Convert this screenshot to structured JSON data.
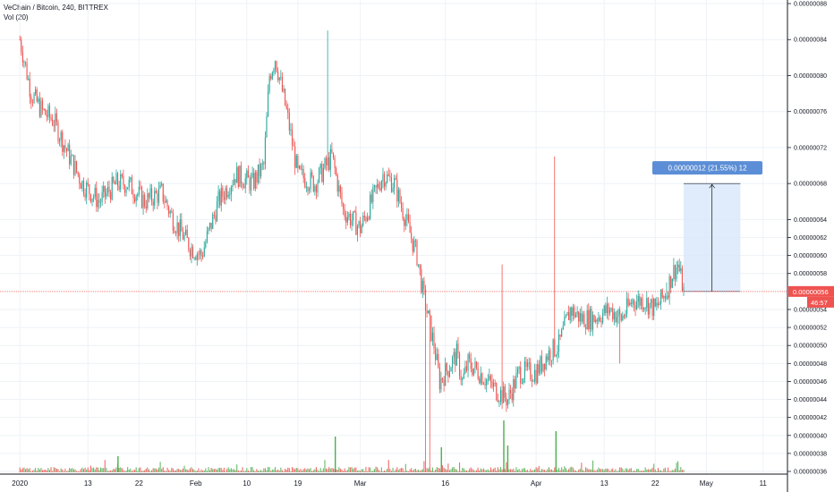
{
  "header": {
    "symbol_line": "VeChain / Bitcoin, 240, BITTREX",
    "indicator_line": "Vol (20)"
  },
  "colors": {
    "up": "#26a69a",
    "down": "#ef5350",
    "vol_up": "#4caf50",
    "vol_down": "#ef5350",
    "grid": "#eef2f6",
    "price_line": "#ef5350",
    "measure_fill": "#dbe9fb",
    "measure_badge": "#5b8ed6",
    "axis_border": "#131722"
  },
  "chart_data": {
    "type": "candlestick",
    "grid": true,
    "y_axis": {
      "range": [
        3.5e-07,
        8.8e-07
      ],
      "ticks": [
        "0.00000088",
        "0.00000084",
        "0.00000080",
        "0.00000076",
        "0.00000072",
        "0.00000068",
        "0.00000064",
        "0.00000062",
        "0.00000060",
        "0.00000058",
        "0.00000054",
        "0.00000052",
        "0.00000050",
        "0.00000048",
        "0.00000046",
        "0.00000044",
        "0.00000042",
        "0.00000040",
        "0.00000038",
        "0.00000036"
      ],
      "tick_values": [
        8.8e-07,
        8.4e-07,
        8e-07,
        7.6e-07,
        7.2e-07,
        6.8e-07,
        6.4e-07,
        6.2e-07,
        6e-07,
        5.8e-07,
        5.4e-07,
        5.2e-07,
        5e-07,
        4.8e-07,
        4.6e-07,
        4.4e-07,
        4.2e-07,
        4e-07,
        3.8e-07,
        3.6e-07
      ]
    },
    "x_axis": {
      "labels": [
        "2020",
        "13",
        "22",
        "Feb",
        "10",
        "19",
        "Mar",
        "16",
        "Apr",
        "13",
        "22",
        "May",
        "11"
      ],
      "label_days": [
        0,
        12,
        21,
        31,
        40,
        49,
        60,
        75,
        91,
        103,
        112,
        121,
        131
      ],
      "day_range": [
        -3.5,
        135.3
      ]
    },
    "last_price": {
      "label": "0.00000056",
      "value": 5.6e-07,
      "countdown": "46:57"
    },
    "measure": {
      "label": "0.00000012 (21.55%) 12",
      "from": 5.6e-07,
      "to": 6.8e-07,
      "day_start": 117,
      "day_end": 127
    },
    "ohlc_path_days": [
      0,
      2,
      4,
      6,
      8,
      11,
      14,
      17,
      19,
      22,
      25,
      27,
      30,
      32,
      35,
      38,
      41,
      43,
      44,
      45,
      47,
      49,
      52,
      55,
      57,
      60,
      62,
      64,
      66,
      68,
      70,
      71,
      73,
      74,
      76,
      77,
      78,
      79,
      81,
      84,
      86,
      88,
      91,
      93,
      95,
      97,
      99,
      101,
      104,
      106,
      108,
      110,
      112,
      114,
      115,
      116,
      117
    ],
    "ohlc_path_closes": [
      8.4e-07,
      7.8e-07,
      7.6e-07,
      7.5e-07,
      7.2e-07,
      6.8e-07,
      6.6e-07,
      6.8e-07,
      6.8e-07,
      6.6e-07,
      6.7e-07,
      6.4e-07,
      6.1e-07,
      6e-07,
      6.6e-07,
      6.9e-07,
      6.8e-07,
      7e-07,
      8e-07,
      8.2e-07,
      7.6e-07,
      6.9e-07,
      6.8e-07,
      7.1e-07,
      6.5e-07,
      6.3e-07,
      6.6e-07,
      6.9e-07,
      6.8e-07,
      6.4e-07,
      6e-07,
      5.6e-07,
      5e-07,
      4.6e-07,
      4.8e-07,
      4.9e-07,
      4.6e-07,
      4.8e-07,
      4.7e-07,
      4.5e-07,
      4.4e-07,
      4.7e-07,
      4.7e-07,
      4.9e-07,
      5e-07,
      5.4e-07,
      5.3e-07,
      5.3e-07,
      5.4e-07,
      5.3e-07,
      5.5e-07,
      5.5e-07,
      5.4e-07,
      5.6e-07,
      5.8e-07,
      5.9e-07,
      5.6e-07
    ],
    "spikes": [
      {
        "day": 54.3,
        "value": 8.5e-07
      },
      {
        "day": 71.5,
        "value": 3.6e-07
      },
      {
        "day": 72.2,
        "value": 3.6e-07
      },
      {
        "day": 85.0,
        "value": 5.9e-07
      },
      {
        "day": 94.3,
        "value": 7.1e-07
      },
      {
        "day": 105.7,
        "value": 4.8e-07
      },
      {
        "day": 114.0,
        "value": 5.7e-07
      }
    ],
    "volume_spikes": [
      {
        "day": 74.3,
        "height": 28
      },
      {
        "day": 85.3,
        "height": 58
      },
      {
        "day": 94.5,
        "height": 46
      },
      {
        "day": 55.6,
        "height": 40
      },
      {
        "day": 17.3,
        "height": 18
      },
      {
        "day": 86.0,
        "height": 30
      }
    ]
  }
}
